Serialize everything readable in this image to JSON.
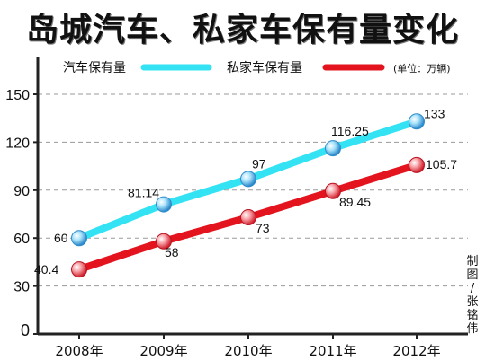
{
  "chart_data": {
    "type": "line",
    "title": "岛城汽车、私家车保有量变化",
    "unit_note": "(单位：万辆)",
    "credit": "制图/张铭伟",
    "categories": [
      "2008年",
      "2009年",
      "2010年",
      "2011年",
      "2012年"
    ],
    "ylim": [
      0,
      150
    ],
    "yticks": [
      0,
      30,
      60,
      90,
      120,
      150
    ],
    "grid": "horizontal, dashed",
    "legend": "top-left",
    "series": [
      {
        "name": "汽车保有量",
        "color": "#33e3f4",
        "values": [
          60,
          81.14,
          97,
          116.25,
          133
        ],
        "labels": [
          "60",
          "81.14",
          "97",
          "116.25",
          "133"
        ]
      },
      {
        "name": "私家车保有量",
        "color": "#e3141e",
        "values": [
          40.4,
          58,
          73,
          89.45,
          105.7
        ],
        "labels": [
          "40.4",
          "58",
          "73",
          "89.45",
          "105.7"
        ]
      }
    ]
  }
}
